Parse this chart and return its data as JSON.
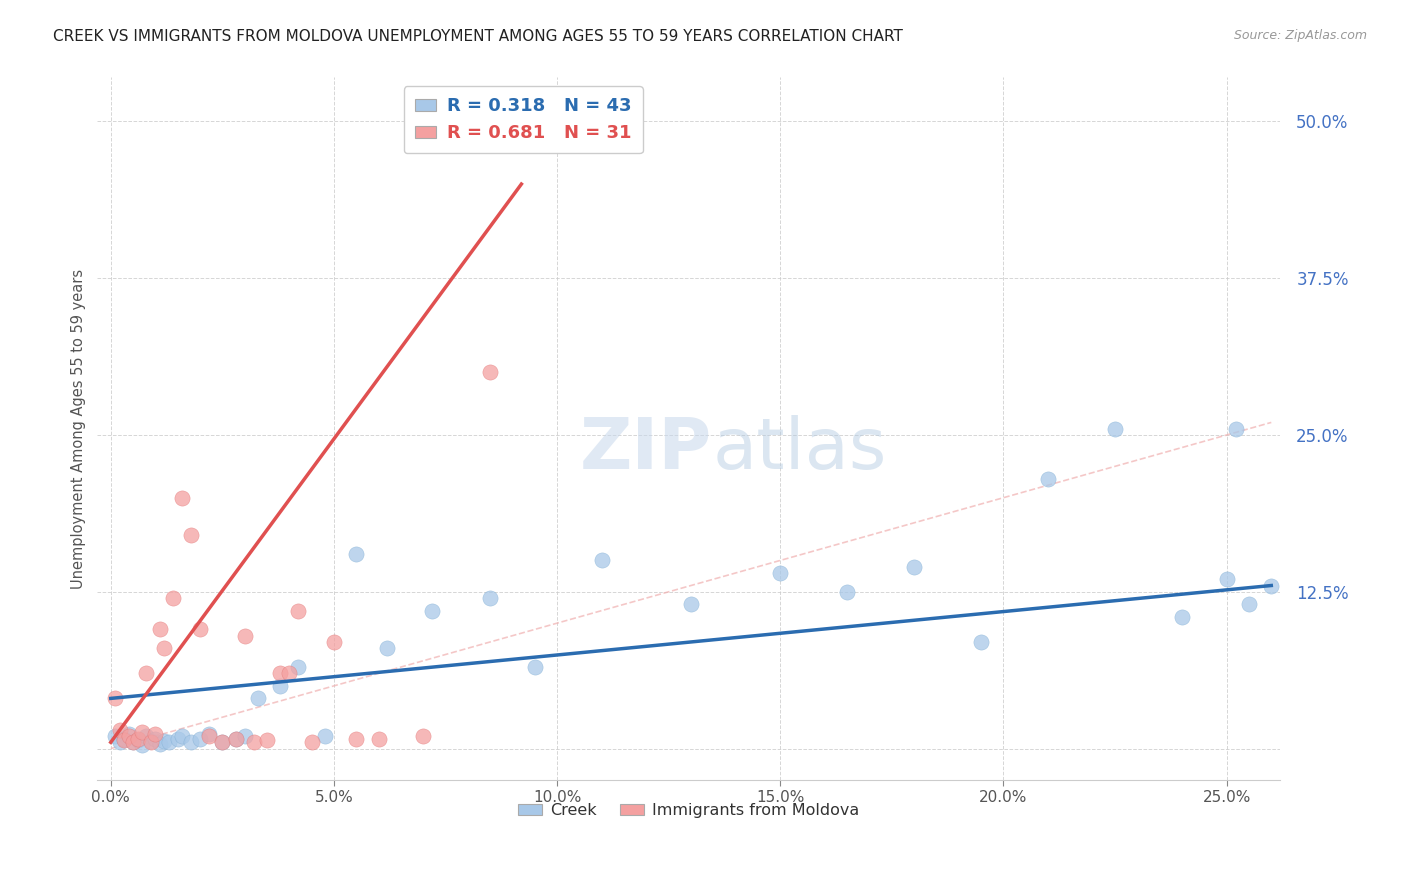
{
  "title": "CREEK VS IMMIGRANTS FROM MOLDOVA UNEMPLOYMENT AMONG AGES 55 TO 59 YEARS CORRELATION CHART",
  "source": "Source: ZipAtlas.com",
  "ylabel": "Unemployment Among Ages 55 to 59 years",
  "creek_color": "#a8c8e8",
  "moldova_color": "#f4a0a0",
  "creek_line_color": "#2b6cb0",
  "moldova_line_color": "#e05050",
  "creek_R": 0.318,
  "creek_N": 43,
  "moldova_R": 0.681,
  "moldova_N": 31,
  "xlim": [
    -0.003,
    0.262
  ],
  "ylim": [
    -0.025,
    0.535
  ],
  "xticks": [
    0.0,
    0.05,
    0.1,
    0.15,
    0.2,
    0.25
  ],
  "yticks": [
    0.0,
    0.125,
    0.25,
    0.375,
    0.5
  ],
  "xtick_labels": [
    "0.0%",
    "5.0%",
    "10.0%",
    "15.0%",
    "20.0%",
    "25.0%"
  ],
  "ytick_labels": [
    "",
    "12.5%",
    "25.0%",
    "37.5%",
    "50.0%"
  ],
  "background_color": "#ffffff",
  "creek_x": [
    0.001,
    0.002,
    0.003,
    0.004,
    0.005,
    0.006,
    0.007,
    0.008,
    0.009,
    0.01,
    0.011,
    0.012,
    0.013,
    0.015,
    0.016,
    0.018,
    0.02,
    0.022,
    0.025,
    0.028,
    0.03,
    0.033,
    0.038,
    0.042,
    0.048,
    0.055,
    0.062,
    0.072,
    0.085,
    0.095,
    0.11,
    0.13,
    0.15,
    0.165,
    0.18,
    0.195,
    0.21,
    0.225,
    0.24,
    0.25,
    0.252,
    0.255,
    0.26
  ],
  "creek_y": [
    0.01,
    0.005,
    0.008,
    0.012,
    0.005,
    0.007,
    0.003,
    0.01,
    0.006,
    0.008,
    0.004,
    0.006,
    0.005,
    0.008,
    0.01,
    0.005,
    0.008,
    0.012,
    0.005,
    0.008,
    0.01,
    0.04,
    0.05,
    0.065,
    0.01,
    0.155,
    0.08,
    0.11,
    0.12,
    0.065,
    0.15,
    0.115,
    0.14,
    0.125,
    0.145,
    0.085,
    0.215,
    0.255,
    0.105,
    0.135,
    0.255,
    0.115,
    0.13
  ],
  "moldova_x": [
    0.001,
    0.002,
    0.003,
    0.004,
    0.005,
    0.006,
    0.007,
    0.008,
    0.009,
    0.01,
    0.011,
    0.012,
    0.014,
    0.016,
    0.018,
    0.02,
    0.022,
    0.025,
    0.028,
    0.03,
    0.032,
    0.035,
    0.038,
    0.04,
    0.042,
    0.045,
    0.05,
    0.055,
    0.06,
    0.07,
    0.085
  ],
  "moldova_y": [
    0.04,
    0.015,
    0.007,
    0.01,
    0.005,
    0.008,
    0.013,
    0.06,
    0.005,
    0.012,
    0.095,
    0.08,
    0.12,
    0.2,
    0.17,
    0.095,
    0.01,
    0.005,
    0.008,
    0.09,
    0.005,
    0.007,
    0.06,
    0.06,
    0.11,
    0.005,
    0.085,
    0.008,
    0.008,
    0.01,
    0.3
  ],
  "creek_trend": [
    0.0,
    0.26,
    0.04,
    0.13
  ],
  "moldova_trend": [
    0.0,
    0.092,
    0.005,
    0.45
  ],
  "ref_line_x": [
    0.0,
    0.26
  ],
  "ref_line_y": [
    0.0,
    0.26
  ]
}
